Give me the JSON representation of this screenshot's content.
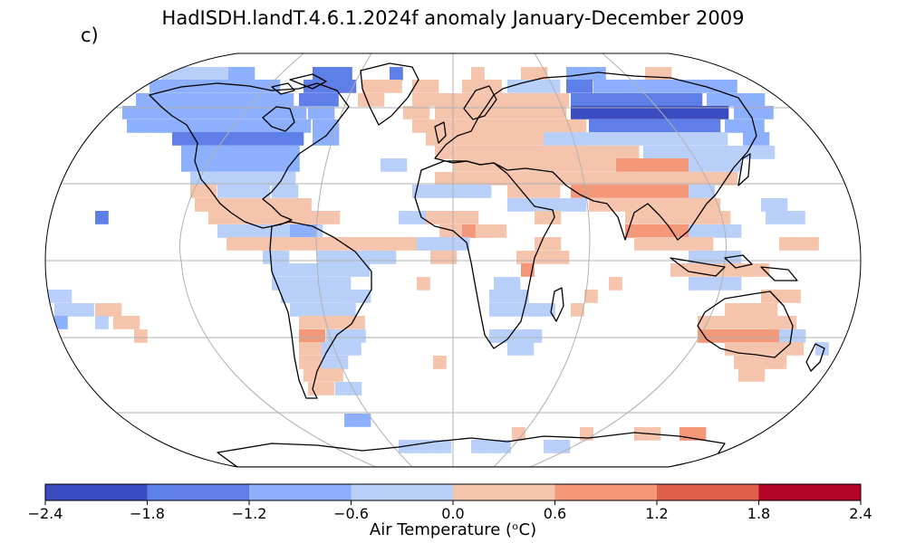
{
  "title": "HadISDH.landT.4.6.1.2024f anomaly January-December 2009",
  "panel_label": "c)",
  "colorbar": {
    "ticks": [
      "−2.4",
      "−1.8",
      "−1.2",
      "−0.6",
      "0.0",
      "0.6",
      "1.2",
      "1.8",
      "2.4"
    ],
    "label": "Air Temperature (ᵒC)",
    "colors": [
      "#3b4cc0",
      "#5f7fe8",
      "#8db0fe",
      "#b8d0f9",
      "#f5c4ac",
      "#f4987a",
      "#dd5f4b",
      "#b40426"
    ]
  },
  "map": {
    "projection": "Robinson",
    "grid_lines": true,
    "ocean_color": "#ffffff",
    "coastline_color": "#000000"
  }
}
